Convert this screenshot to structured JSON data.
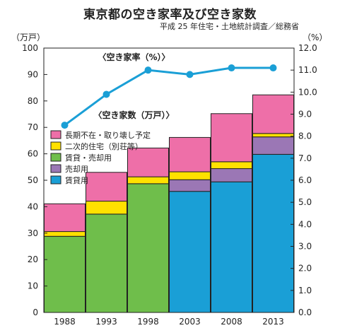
{
  "title": "東京都の空き家率及び空き家数",
  "subtitle": "平成 25 年住宅・土地統計調査／総務省",
  "left_unit": "（万戸）",
  "right_unit": "（%）",
  "line_label": "〈空き家率（%）〉",
  "bar_label": "〈空き家数（万戸）〉",
  "colors": {
    "rental": "#1a9fd6",
    "for_sale": "#9b77b5",
    "rental_sale_combined": "#6fbe4b",
    "secondary": "#ffe100",
    "long_term": "#ee6fa8",
    "line": "#1a9fd6"
  },
  "chart_data": {
    "type": "bar",
    "stacked": true,
    "categories": [
      "1988",
      "1993",
      "1998",
      "2003",
      "2008",
      "2013"
    ],
    "ylim": [
      0,
      100
    ],
    "yticks": [
      0,
      10,
      20,
      30,
      40,
      50,
      60,
      70,
      80,
      90,
      100
    ],
    "y2lim": [
      0,
      12
    ],
    "y2ticks": [
      "0.0",
      "1.0",
      "2.0",
      "3.0",
      "4.0",
      "5.0",
      "6.0",
      "7.0",
      "8.0",
      "9.0",
      "10.0",
      "11.0",
      "12.0"
    ],
    "series": [
      {
        "name": "賃貸・売却用",
        "key": "rental_sale_combined",
        "values": [
          28.8,
          37.2,
          48.7,
          0,
          0,
          0
        ]
      },
      {
        "name": "賃貸用",
        "key": "rental",
        "values": [
          0,
          0,
          0,
          45.8,
          49.4,
          59.8
        ]
      },
      {
        "name": "売却用",
        "key": "for_sale",
        "values": [
          0,
          0,
          0,
          4.4,
          5.0,
          6.6
        ]
      },
      {
        "name": "二次的住宅（別荘等）",
        "key": "secondary",
        "values": [
          1.8,
          4.9,
          2.6,
          3.0,
          2.6,
          1.3
        ]
      },
      {
        "name": "長期不在・取り壊し予定",
        "key": "long_term",
        "values": [
          10.5,
          10.9,
          10.9,
          13.0,
          18.2,
          14.6
        ]
      }
    ],
    "legend": [
      {
        "name": "長期不在・取り壊し予定",
        "key": "long_term"
      },
      {
        "name": "二次的住宅（別荘等）",
        "key": "secondary"
      },
      {
        "name": "賃貸・売却用",
        "key": "rental_sale_combined"
      },
      {
        "name": "売却用",
        "key": "for_sale"
      },
      {
        "name": "賃貸用",
        "key": "rental"
      }
    ],
    "line": {
      "name": "空き家率",
      "axis": "right",
      "values": [
        8.5,
        9.9,
        11.0,
        10.8,
        11.1,
        11.1
      ]
    },
    "grid": false,
    "legend_position": "upper-left"
  }
}
